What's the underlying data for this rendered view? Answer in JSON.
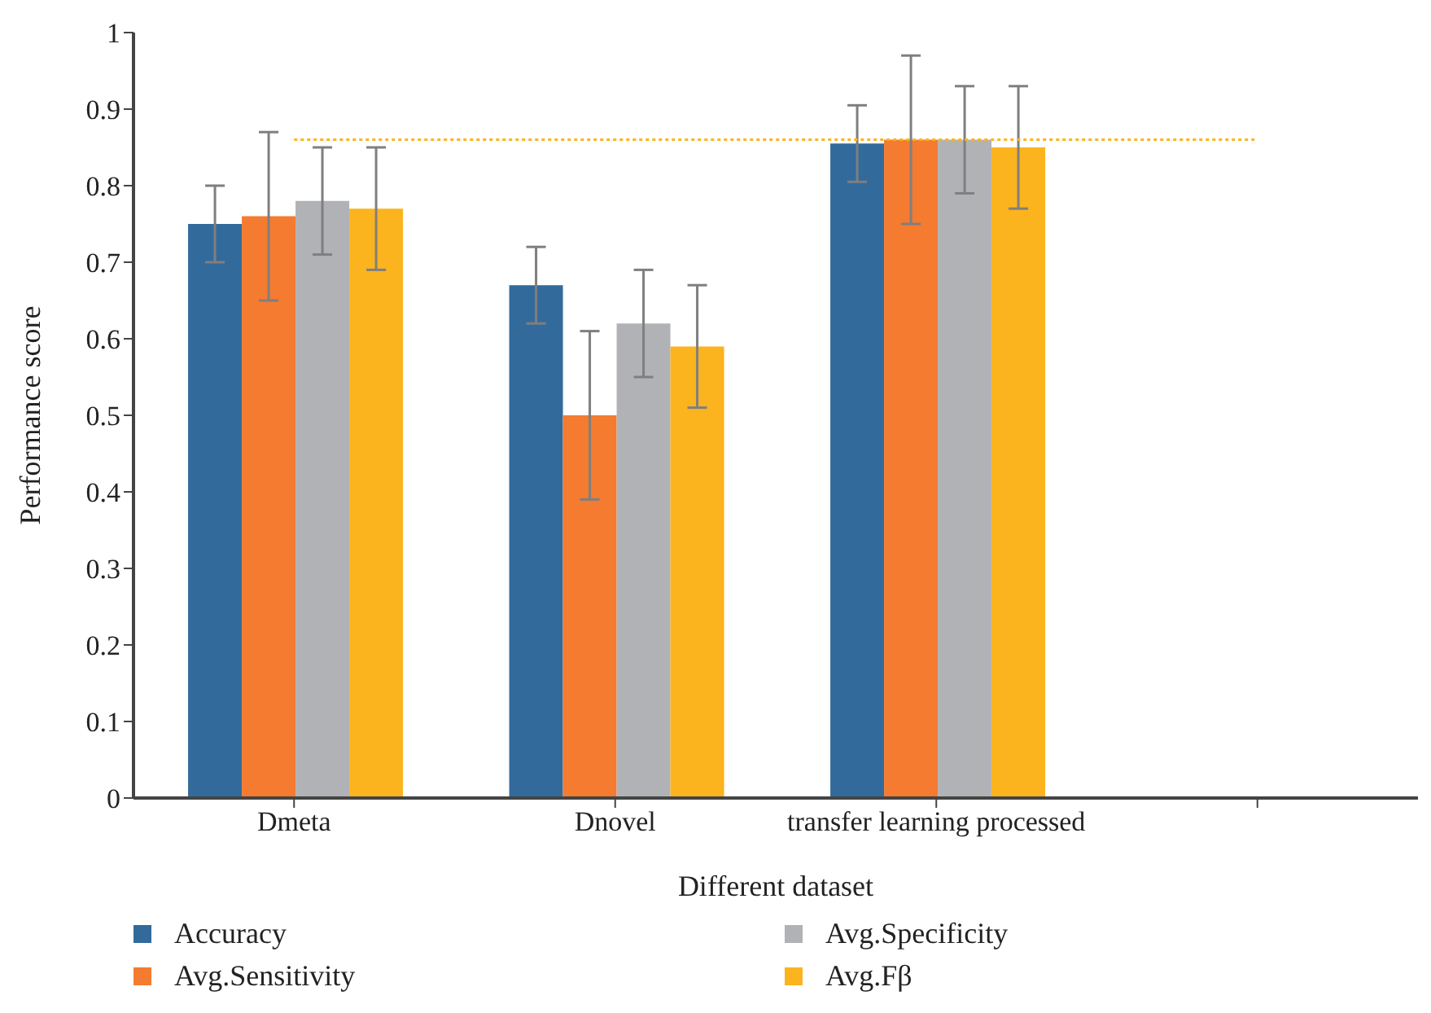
{
  "chart_data": {
    "type": "bar",
    "xlabel": "Different dataset",
    "ylabel": "Performance score",
    "categories": [
      "Dmeta",
      "Dnovel",
      "transfer learning processed",
      null
    ],
    "series": [
      {
        "name": "Accuracy",
        "color": "#336a9c",
        "values": [
          0.75,
          0.67,
          0.855,
          null
        ],
        "errors": [
          0.05,
          0.05,
          0.05,
          null
        ]
      },
      {
        "name": "Avg.Sensitivity",
        "color": "#f47b30",
        "values": [
          0.76,
          0.5,
          0.86,
          null
        ],
        "errors": [
          0.11,
          0.11,
          0.11,
          null
        ]
      },
      {
        "name": "Avg.Specificity",
        "color": "#b1b2b5",
        "values": [
          0.78,
          0.62,
          0.86,
          null
        ],
        "errors": [
          0.07,
          0.07,
          0.07,
          null
        ]
      },
      {
        "name": "Avg.Fβ",
        "color": "#fbb41e",
        "values": [
          0.77,
          0.59,
          0.85,
          null
        ],
        "errors": [
          0.08,
          0.08,
          0.08,
          null
        ]
      }
    ],
    "ylim": [
      0,
      1
    ],
    "yticks": [
      0,
      0.1,
      0.2,
      0.3,
      0.4,
      0.5,
      0.6,
      0.7,
      0.8,
      0.9,
      1
    ],
    "ref_lines": [
      {
        "axis": "y",
        "value": 0.86,
        "color": "#fbb41e",
        "line_style": "dotted"
      }
    ],
    "grid": false,
    "legend": "bottom"
  }
}
